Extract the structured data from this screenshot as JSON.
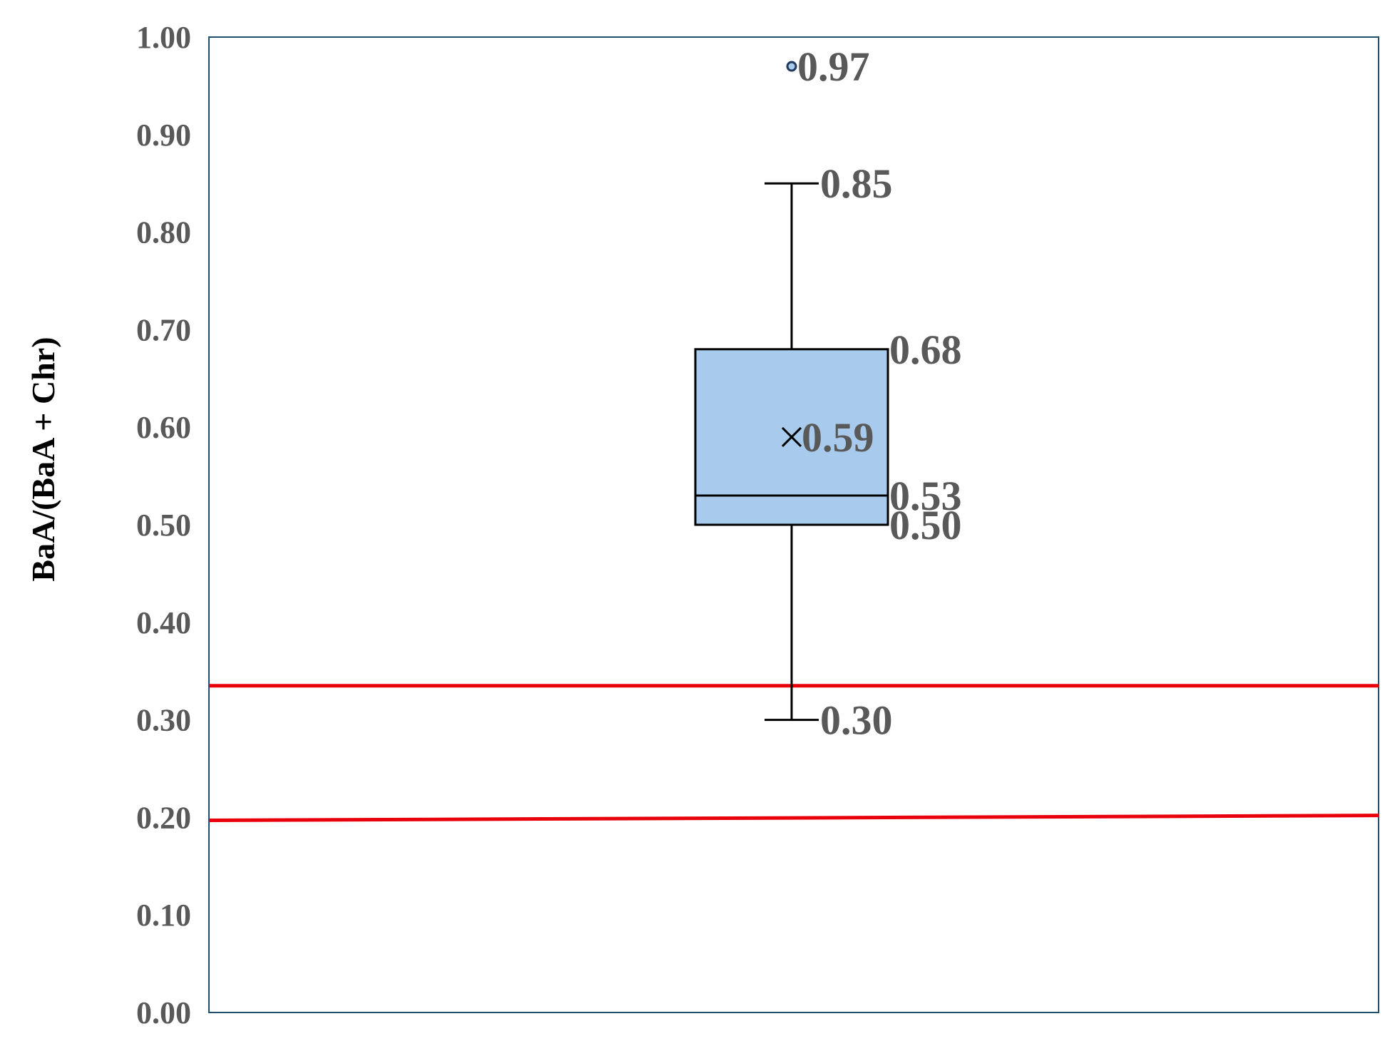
{
  "chart_data": {
    "type": "box",
    "title": "",
    "xlabel": "",
    "ylabel": "BaA/(BaA + Chr)",
    "ylim": [
      0,
      1
    ],
    "yticks": [
      0,
      0.1,
      0.2,
      0.3,
      0.4,
      0.5,
      0.6,
      0.7,
      0.8,
      0.9,
      1.0
    ],
    "ytick_labels": [
      "0.00",
      "0.10",
      "0.20",
      "0.30",
      "0.40",
      "0.50",
      "0.60",
      "0.70",
      "0.80",
      "0.90",
      "1.00"
    ],
    "grid": false,
    "legend": "none",
    "box": {
      "whisker_low": 0.3,
      "q1": 0.5,
      "median": 0.53,
      "mean": 0.59,
      "q3": 0.68,
      "whisker_high": 0.85,
      "outliers": [
        0.97
      ],
      "fill_color": "#a8caec",
      "line_color": "#000000"
    },
    "data_labels": {
      "outlier": "0.97",
      "whisker_high": "0.85",
      "q3": "0.68",
      "mean": "0.59",
      "median": "0.53",
      "q1": "0.50",
      "whisker_low": "0.30"
    },
    "reference_lines": [
      {
        "y_left": 0.335,
        "y_right": 0.335,
        "color": "#e8000b"
      },
      {
        "y_left": 0.197,
        "y_right": 0.202,
        "color": "#e8000b"
      }
    ],
    "plot_border_color": "#1f4e6e"
  }
}
